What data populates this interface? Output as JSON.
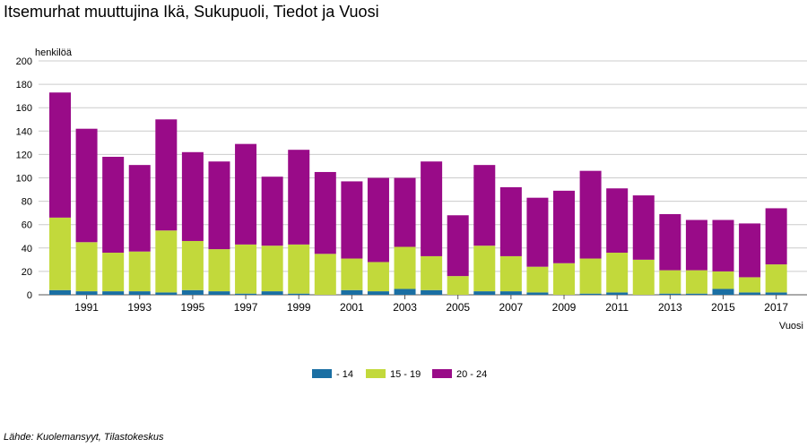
{
  "title": "Itsemurhat muuttujina Ikä, Sukupuoli, Tiedot ja Vuosi",
  "source": "Lähde: Kuolemansyyt, Tilastokeskus",
  "chart_data": {
    "type": "bar",
    "stacked": true,
    "title": "Itsemurhat muuttujina Ikä, Sukupuoli, Tiedot ja Vuosi",
    "ylabel": "henkilöä",
    "xlabel": "Vuosi",
    "ylim": [
      0,
      200
    ],
    "yticks": [
      0,
      20,
      40,
      60,
      80,
      100,
      120,
      140,
      160,
      180,
      200
    ],
    "grid": true,
    "legend_position": "bottom",
    "categories": [
      "1990",
      "1991",
      "1992",
      "1993",
      "1994",
      "1995",
      "1996",
      "1997",
      "1998",
      "1999",
      "2000",
      "2001",
      "2002",
      "2003",
      "2004",
      "2005",
      "2006",
      "2007",
      "2008",
      "2009",
      "2010",
      "2011",
      "2012",
      "2013",
      "2014",
      "2015",
      "2016",
      "2017"
    ],
    "x_tick_labels": [
      "1991",
      "1993",
      "1995",
      "1997",
      "1999",
      "2001",
      "2003",
      "2005",
      "2007",
      "2009",
      "2011",
      "2013",
      "2015",
      "2017"
    ],
    "series": [
      {
        "name": "- 14",
        "color": "#1a6fa3",
        "values": [
          4,
          3,
          3,
          3,
          2,
          4,
          3,
          1,
          3,
          1,
          0,
          4,
          3,
          5,
          4,
          0,
          3,
          3,
          2,
          0,
          1,
          2,
          0,
          1,
          1,
          5,
          2,
          2
        ]
      },
      {
        "name": "15 - 19",
        "color": "#c2d93b",
        "values": [
          62,
          42,
          33,
          34,
          53,
          42,
          36,
          42,
          39,
          42,
          35,
          27,
          25,
          36,
          29,
          16,
          39,
          30,
          22,
          27,
          30,
          34,
          30,
          20,
          20,
          15,
          13,
          24
        ]
      },
      {
        "name": "20 - 24",
        "color": "#990b88",
        "values": [
          107,
          97,
          82,
          74,
          95,
          76,
          75,
          86,
          59,
          81,
          70,
          66,
          72,
          59,
          81,
          52,
          69,
          59,
          59,
          62,
          75,
          55,
          55,
          48,
          43,
          44,
          46,
          48
        ]
      }
    ]
  }
}
